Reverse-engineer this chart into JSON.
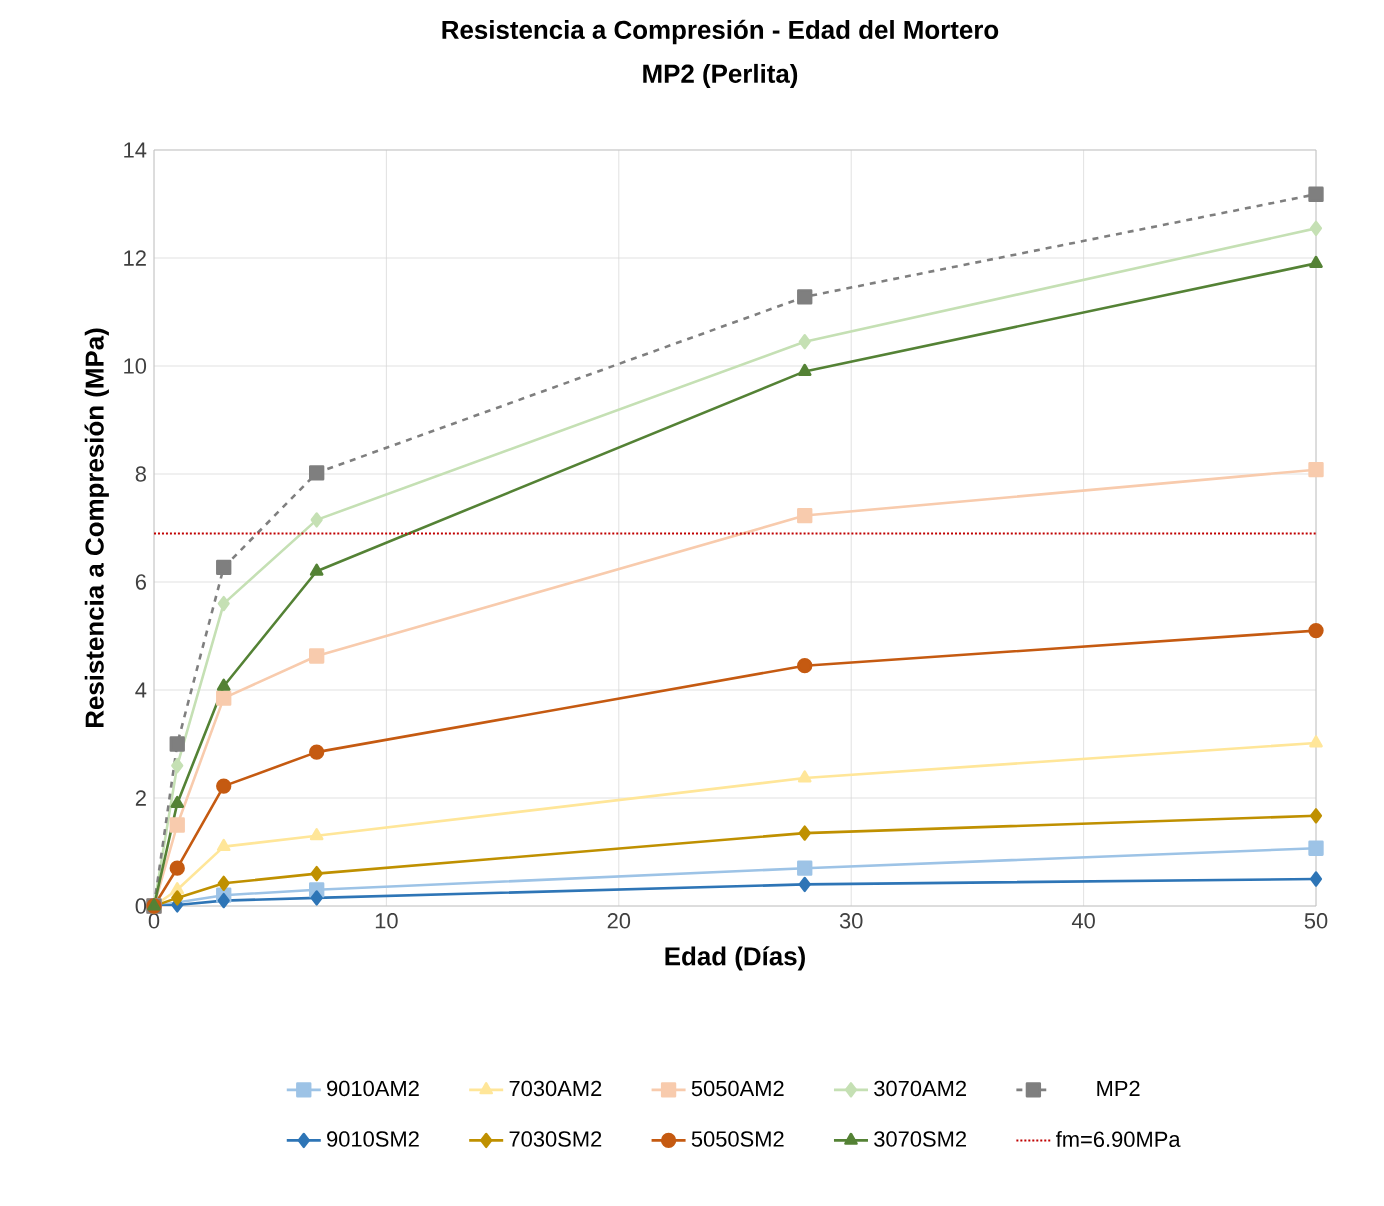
{
  "chart_data": {
    "type": "line",
    "title": "Resistencia a Compresión - Edad del Mortero",
    "subtitle": "MP2 (Perlita)",
    "xlabel": "Edad (Días)",
    "ylabel": "Resistencia a Compresión  (MPa)",
    "x": [
      0,
      1,
      3,
      7,
      28,
      50
    ],
    "series": [
      {
        "name": "9010AM2",
        "color": "#9dc3e6",
        "marker": "square",
        "values": [
          0,
          null,
          0.2,
          0.3,
          0.7,
          1.07
        ]
      },
      {
        "name": "7030AM2",
        "color": "#ffe699",
        "marker": "triangle",
        "values": [
          0,
          0.3,
          1.1,
          1.3,
          2.37,
          3.02
        ]
      },
      {
        "name": "5050AM2",
        "color": "#f8cbad",
        "marker": "square",
        "values": [
          0,
          1.5,
          3.85,
          4.63,
          7.23,
          8.08
        ]
      },
      {
        "name": "3070AM2",
        "color": "#c5e0b4",
        "marker": "diamond",
        "values": [
          0,
          2.6,
          5.6,
          7.15,
          10.45,
          12.55
        ]
      },
      {
        "name": "MP2",
        "color": "#7f7f7f",
        "marker": "square",
        "line_style": "dashed",
        "values": [
          0,
          3.0,
          6.27,
          8.02,
          11.28,
          13.18
        ]
      },
      {
        "name": "9010SM2",
        "color": "#2e75b6",
        "marker": "diamond",
        "values": [
          0,
          0.02,
          0.1,
          0.15,
          0.4,
          0.5
        ]
      },
      {
        "name": "7030SM2",
        "color": "#bf9000",
        "marker": "diamond",
        "values": [
          0,
          0.15,
          0.42,
          0.6,
          1.35,
          1.67
        ]
      },
      {
        "name": "5050SM2",
        "color": "#c55a11",
        "marker": "circle",
        "values": [
          0,
          0.7,
          2.22,
          2.85,
          4.45,
          5.1
        ]
      },
      {
        "name": "3070SM2",
        "color": "#548235",
        "marker": "triangle",
        "values": [
          0,
          1.9,
          4.07,
          6.2,
          9.9,
          11.9
        ]
      }
    ],
    "ref_lines": [
      {
        "axis": "y",
        "value": 6.9,
        "label": "fm=6.90MPa",
        "color": "#c00000",
        "line_style": "dotted"
      }
    ],
    "xlim": [
      0,
      50
    ],
    "ylim": [
      0,
      14
    ],
    "xticks": [
      0,
      10,
      20,
      30,
      40,
      50
    ],
    "yticks": [
      0,
      2,
      4,
      6,
      8,
      10,
      12,
      14
    ],
    "grid": true,
    "legend": "bottom",
    "line_style": "solid"
  }
}
